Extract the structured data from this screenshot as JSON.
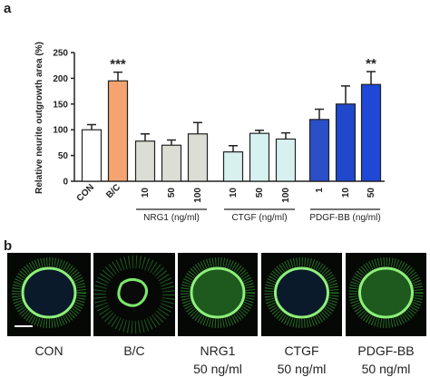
{
  "panel_labels": [
    "a",
    "b"
  ],
  "chart_data": {
    "type": "bar",
    "ylabel": "Relative neurite outgrowth area (%)",
    "categories": [
      "CON",
      "B/C",
      "10",
      "50",
      "100",
      "10",
      "50",
      "100",
      "1",
      "10",
      "50"
    ],
    "values": [
      100,
      195,
      78,
      70,
      92,
      57,
      93,
      82,
      120,
      150,
      188
    ],
    "errors": [
      10,
      17,
      14,
      10,
      22,
      12,
      6,
      12,
      20,
      35,
      25
    ],
    "colors": [
      "#ffffff",
      "#f4a470",
      "#dcddd5",
      "#dcddd5",
      "#dcddd5",
      "#d6f1ef",
      "#d6f1ef",
      "#d6f1ef",
      "#2a4fc6",
      "#1f48cc",
      "#1f48d6"
    ],
    "significance": [
      null,
      "***",
      null,
      null,
      null,
      null,
      null,
      null,
      null,
      null,
      "**"
    ],
    "groups": [
      "NRG1 (ng/ml)",
      "CTGF (ng/ml)",
      "PDGF-BB (ng/ml)"
    ],
    "ylim": [
      0,
      250
    ],
    "yticks": [
      0,
      50,
      100,
      150,
      200,
      250
    ]
  },
  "panel_b": {
    "images": [
      {
        "label": "CON"
      },
      {
        "label": "B/C"
      },
      {
        "label": "NRG1",
        "sublabel": "50 ng/ml"
      },
      {
        "label": "CTGF",
        "sublabel": "50 ng/ml"
      },
      {
        "label": "PDGF-BB",
        "sublabel": "50 ng/ml"
      }
    ]
  }
}
